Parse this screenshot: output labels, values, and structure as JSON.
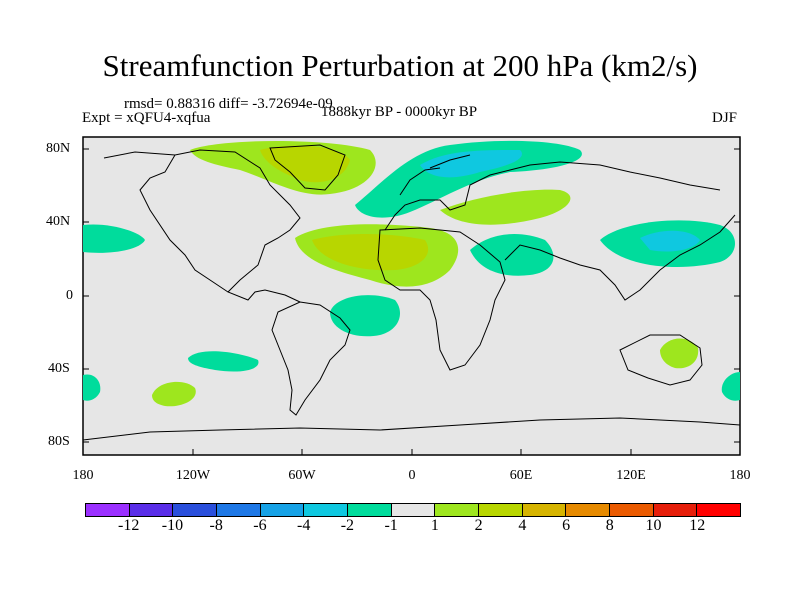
{
  "title": "Streamfunction Perturbation at 200 hPa (km2/s)",
  "stats_line": "rmsd= 0.88316 diff= -3.72694e-09",
  "experiment_line": "Expt = xQFU4-xqfua",
  "period": "1888kyr BP - 0000kyr BP",
  "season": "DJF",
  "lat_labels": [
    "80N",
    "40N",
    "0",
    "40S",
    "80S"
  ],
  "lon_labels": [
    "180",
    "120W",
    "60W",
    "0",
    "60E",
    "120E",
    "180"
  ],
  "colorbar": {
    "labels": [
      "-12",
      "-10",
      "-8",
      "-6",
      "-4",
      "-2",
      "-1",
      "1",
      "2",
      "4",
      "6",
      "8",
      "10",
      "12"
    ],
    "colors": [
      "#9b30ff",
      "#5a2ee8",
      "#2a4fdc",
      "#1e78e6",
      "#16a2e6",
      "#0fc8e0",
      "#00dc9c",
      "#e6e6e6",
      "#9ee61e",
      "#b8d600",
      "#d6b400",
      "#e68a00",
      "#ea5a00",
      "#e61e0a",
      "#ff0000"
    ]
  },
  "map": {
    "background_color": "#e6e6e6",
    "anomalies": [
      {
        "region": "Greenland / North Atlantic",
        "value": 2,
        "level": "+2"
      },
      {
        "region": "Greenland core",
        "value": 4,
        "level": "+4"
      },
      {
        "region": "Northern Eurasia",
        "value": -2,
        "level": "-2"
      },
      {
        "region": "Scandinavia / Russia core",
        "value": -4,
        "level": "-4"
      },
      {
        "region": "Central Asia",
        "value": 2,
        "level": "+2"
      },
      {
        "region": "Tropical Atlantic / North Africa",
        "value": 2,
        "level": "+2"
      },
      {
        "region": "Sahara core",
        "value": 4,
        "level": "+4"
      },
      {
        "region": "Arabia / Middle East",
        "value": -2,
        "level": "-2"
      },
      {
        "region": "Eastern Pacific",
        "value": -2,
        "level": "-2"
      },
      {
        "region": "East Asia / West Pacific",
        "value": -2,
        "level": "-2"
      },
      {
        "region": "Japan core",
        "value": -4,
        "level": "-4"
      },
      {
        "region": "Equatorial South Atlantic",
        "value": -2,
        "level": "-2"
      },
      {
        "region": "Southeast Pacific",
        "value": -2,
        "level": "-2"
      },
      {
        "region": "South Pacific",
        "value": 2,
        "level": "+2"
      },
      {
        "region": "Australia",
        "value": 2,
        "level": "+2"
      },
      {
        "region": "Southern Ocean edges",
        "value": -2,
        "level": "-2"
      }
    ]
  }
}
